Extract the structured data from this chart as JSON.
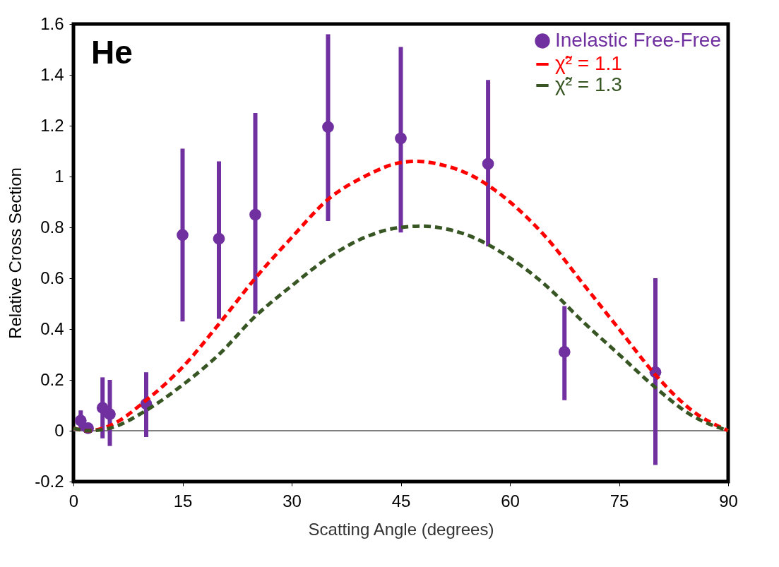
{
  "chart_data": {
    "type": "scatter",
    "xlabel": "Scatting Angle (degrees)",
    "ylabel": "Relative Cross Section",
    "annotations": [
      "He"
    ],
    "xlim": [
      0,
      90
    ],
    "xticks": [
      0,
      15,
      30,
      45,
      60,
      75,
      90
    ],
    "ylim": [
      -0.2,
      1.6
    ],
    "yticks": [
      -0.2,
      0,
      0.2,
      0.4,
      0.6,
      0.8,
      1,
      1.2,
      1.4,
      1.6
    ],
    "grid": false,
    "legend": "top right",
    "ref_lines": [
      {
        "axis": "y",
        "value": 0,
        "color": "#808080"
      }
    ],
    "series": [
      {
        "name": "Inelastic Free-Free",
        "color": "#7030a0",
        "marker": "circle",
        "x": [
          1,
          2,
          4,
          5,
          10,
          15,
          20,
          25,
          35,
          45,
          57,
          67.5,
          80
        ],
        "values": [
          0.04,
          0.01,
          0.09,
          0.065,
          0.105,
          0.77,
          0.755,
          0.85,
          1.195,
          1.15,
          1.05,
          0.31,
          0.23
        ],
        "errors": [
          [
            0,
            0.08
          ],
          null,
          [
            -0.03,
            0.21
          ],
          [
            -0.06,
            0.2
          ],
          [
            -0.025,
            0.23
          ],
          [
            0.43,
            1.11
          ],
          [
            0.44,
            1.06
          ],
          [
            0.46,
            1.25
          ],
          [
            0.825,
            1.56
          ],
          [
            0.78,
            1.51
          ],
          [
            0.725,
            1.38
          ],
          [
            0.12,
            0.49
          ],
          [
            -0.135,
            0.6
          ]
        ]
      },
      {
        "name": "χ̃² = 1.1",
        "type": "line",
        "color": "#ff0000",
        "line_style": "dashed",
        "x": [
          0,
          2,
          5,
          10,
          15,
          20,
          25,
          30,
          35,
          40,
          45,
          47,
          50,
          55,
          60,
          65,
          70,
          75,
          80,
          85,
          90
        ],
        "values": [
          0.01,
          0,
          0.02,
          0.12,
          0.25,
          0.42,
          0.6,
          0.76,
          0.91,
          1.0,
          1.055,
          1.06,
          1.05,
          1.0,
          0.9,
          0.76,
          0.58,
          0.4,
          0.22,
          0.08,
          0
        ]
      },
      {
        "name": "χ̃² = 1.3",
        "type": "line",
        "color": "#375623",
        "line_style": "dashed",
        "x": [
          0,
          2,
          5,
          10,
          15,
          20,
          25,
          30,
          35,
          40,
          45,
          48,
          50,
          55,
          60,
          65,
          70,
          75,
          80,
          85,
          90
        ],
        "values": [
          0.01,
          0,
          0.01,
          0.08,
          0.18,
          0.3,
          0.45,
          0.57,
          0.68,
          0.76,
          0.8,
          0.805,
          0.8,
          0.76,
          0.68,
          0.57,
          0.43,
          0.3,
          0.17,
          0.06,
          0
        ]
      }
    ]
  }
}
